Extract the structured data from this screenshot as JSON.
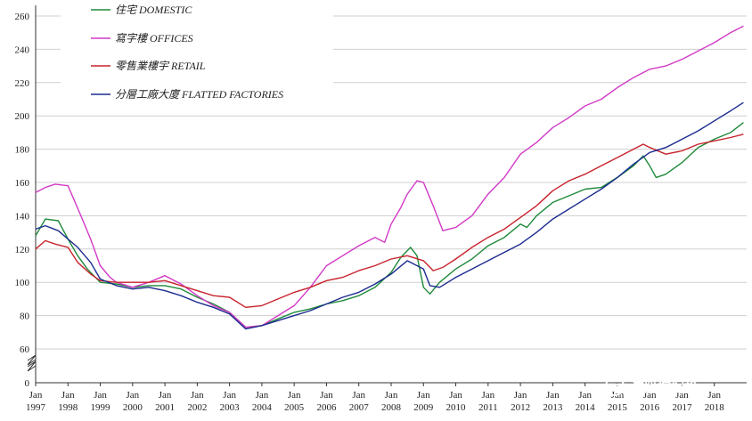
{
  "chart_data": {
    "type": "line",
    "title": "",
    "xlabel": "",
    "ylabel": "",
    "ylim": [
      60,
      260
    ],
    "y_axis_origin_label": "0",
    "y_axis_break": true,
    "yticks": [
      "60",
      "80",
      "100",
      "120",
      "140",
      "160",
      "180",
      "200",
      "220",
      "240",
      "260"
    ],
    "xlim": [
      "1997-01",
      "2018-12"
    ],
    "x_ticks": [
      {
        "top": "Jan",
        "bottom": "1997",
        "year": 1997
      },
      {
        "top": "Jan",
        "bottom": "1998",
        "year": 1998
      },
      {
        "top": "Jan",
        "bottom": "1999",
        "year": 1999
      },
      {
        "top": "Jan",
        "bottom": "2000",
        "year": 2000
      },
      {
        "top": "Jan",
        "bottom": "2001",
        "year": 2001
      },
      {
        "top": "Jan",
        "bottom": "2002",
        "year": 2002
      },
      {
        "top": "Jan",
        "bottom": "2003",
        "year": 2003
      },
      {
        "top": "Jan",
        "bottom": "2004",
        "year": 2004
      },
      {
        "top": "Jan",
        "bottom": "2005",
        "year": 2005
      },
      {
        "top": "Jan",
        "bottom": "2006",
        "year": 2006
      },
      {
        "top": "Jan",
        "bottom": "2007",
        "year": 2007
      },
      {
        "top": "Jan",
        "bottom": "2008",
        "year": 2008
      },
      {
        "top": "Jan",
        "bottom": "2009",
        "year": 2009
      },
      {
        "top": "Jan",
        "bottom": "2010",
        "year": 2010
      },
      {
        "top": "Jan",
        "bottom": "2011",
        "year": 2011
      },
      {
        "top": "Jan",
        "bottom": "2012",
        "year": 2012
      },
      {
        "top": "Jan",
        "bottom": "2013",
        "year": 2013
      },
      {
        "top": "Jan",
        "bottom": "2014",
        "year": 2014
      },
      {
        "top": "Jan",
        "bottom": "2015",
        "year": 2015
      },
      {
        "top": "Jan",
        "bottom": "2016",
        "year": 2016
      },
      {
        "top": "Jan",
        "bottom": "2017",
        "year": 2017
      },
      {
        "top": "Jan",
        "bottom": "2018",
        "year": 2018
      }
    ],
    "grid": true,
    "legend_position": "top-left",
    "series": [
      {
        "name": "住宅  DOMESTIC",
        "color": "#1e8a3a",
        "points": [
          [
            1997.0,
            128
          ],
          [
            1997.3,
            138
          ],
          [
            1997.7,
            137
          ],
          [
            1998.0,
            126
          ],
          [
            1998.3,
            116
          ],
          [
            1998.6,
            108
          ],
          [
            1999.0,
            100
          ],
          [
            1999.5,
            99
          ],
          [
            2000.0,
            97
          ],
          [
            2000.5,
            98
          ],
          [
            2001.0,
            98
          ],
          [
            2001.5,
            96
          ],
          [
            2002.0,
            91
          ],
          [
            2002.5,
            87
          ],
          [
            2003.0,
            82
          ],
          [
            2003.5,
            73
          ],
          [
            2004.0,
            74
          ],
          [
            2004.5,
            78
          ],
          [
            2005.0,
            82
          ],
          [
            2005.5,
            84
          ],
          [
            2006.0,
            87
          ],
          [
            2006.5,
            89
          ],
          [
            2007.0,
            92
          ],
          [
            2007.5,
            97
          ],
          [
            2008.0,
            106
          ],
          [
            2008.3,
            115
          ],
          [
            2008.6,
            121
          ],
          [
            2008.8,
            116
          ],
          [
            2009.0,
            97
          ],
          [
            2009.2,
            93
          ],
          [
            2009.5,
            100
          ],
          [
            2010.0,
            108
          ],
          [
            2010.5,
            114
          ],
          [
            2011.0,
            122
          ],
          [
            2011.5,
            127
          ],
          [
            2012.0,
            135
          ],
          [
            2012.2,
            133
          ],
          [
            2012.5,
            140
          ],
          [
            2013.0,
            148
          ],
          [
            2013.5,
            152
          ],
          [
            2014.0,
            156
          ],
          [
            2014.5,
            157
          ],
          [
            2015.0,
            163
          ],
          [
            2015.5,
            170
          ],
          [
            2015.8,
            176
          ],
          [
            2016.0,
            170
          ],
          [
            2016.2,
            163
          ],
          [
            2016.5,
            165
          ],
          [
            2017.0,
            172
          ],
          [
            2017.5,
            181
          ],
          [
            2018.0,
            186
          ],
          [
            2018.5,
            190
          ],
          [
            2018.9,
            196
          ]
        ]
      },
      {
        "name": "寫字樓   OFFICES",
        "color": "#d23ac6",
        "points": [
          [
            1997.0,
            154
          ],
          [
            1997.3,
            157
          ],
          [
            1997.6,
            159
          ],
          [
            1998.0,
            158
          ],
          [
            1998.4,
            140
          ],
          [
            1998.7,
            126
          ],
          [
            1999.0,
            110
          ],
          [
            1999.3,
            103
          ],
          [
            1999.5,
            100
          ],
          [
            2000.0,
            97
          ],
          [
            2000.5,
            100
          ],
          [
            2001.0,
            104
          ],
          [
            2001.5,
            99
          ],
          [
            2002.0,
            92
          ],
          [
            2002.5,
            86
          ],
          [
            2003.0,
            82
          ],
          [
            2003.5,
            73
          ],
          [
            2004.0,
            74
          ],
          [
            2004.5,
            80
          ],
          [
            2005.0,
            86
          ],
          [
            2005.5,
            97
          ],
          [
            2006.0,
            110
          ],
          [
            2006.5,
            116
          ],
          [
            2007.0,
            122
          ],
          [
            2007.5,
            127
          ],
          [
            2007.8,
            124
          ],
          [
            2008.0,
            135
          ],
          [
            2008.3,
            145
          ],
          [
            2008.5,
            153
          ],
          [
            2008.8,
            161
          ],
          [
            2009.0,
            160
          ],
          [
            2009.3,
            146
          ],
          [
            2009.6,
            131
          ],
          [
            2010.0,
            133
          ],
          [
            2010.5,
            140
          ],
          [
            2011.0,
            153
          ],
          [
            2011.5,
            163
          ],
          [
            2012.0,
            177
          ],
          [
            2012.5,
            184
          ],
          [
            2013.0,
            193
          ],
          [
            2013.5,
            199
          ],
          [
            2014.0,
            206
          ],
          [
            2014.5,
            210
          ],
          [
            2015.0,
            217
          ],
          [
            2015.5,
            223
          ],
          [
            2016.0,
            228
          ],
          [
            2016.5,
            230
          ],
          [
            2017.0,
            234
          ],
          [
            2017.5,
            239
          ],
          [
            2018.0,
            244
          ],
          [
            2018.5,
            250
          ],
          [
            2018.9,
            254
          ]
        ]
      },
      {
        "name": "零售業樓宇  RETAIL",
        "color": "#c8232c",
        "points": [
          [
            1997.0,
            120
          ],
          [
            1997.3,
            125
          ],
          [
            1997.6,
            123
          ],
          [
            1998.0,
            121
          ],
          [
            1998.3,
            112
          ],
          [
            1998.7,
            105
          ],
          [
            1999.0,
            101
          ],
          [
            1999.5,
            100
          ],
          [
            2000.0,
            100
          ],
          [
            2000.5,
            100
          ],
          [
            2001.0,
            101
          ],
          [
            2001.5,
            98
          ],
          [
            2002.0,
            95
          ],
          [
            2002.5,
            92
          ],
          [
            2003.0,
            91
          ],
          [
            2003.5,
            85
          ],
          [
            2004.0,
            86
          ],
          [
            2004.5,
            90
          ],
          [
            2005.0,
            94
          ],
          [
            2005.5,
            97
          ],
          [
            2006.0,
            101
          ],
          [
            2006.5,
            103
          ],
          [
            2007.0,
            107
          ],
          [
            2007.5,
            110
          ],
          [
            2008.0,
            114
          ],
          [
            2008.5,
            116
          ],
          [
            2009.0,
            113
          ],
          [
            2009.3,
            107
          ],
          [
            2009.6,
            109
          ],
          [
            2010.0,
            114
          ],
          [
            2010.5,
            121
          ],
          [
            2011.0,
            127
          ],
          [
            2011.5,
            132
          ],
          [
            2012.0,
            139
          ],
          [
            2012.5,
            146
          ],
          [
            2013.0,
            155
          ],
          [
            2013.5,
            161
          ],
          [
            2014.0,
            165
          ],
          [
            2014.5,
            170
          ],
          [
            2015.0,
            175
          ],
          [
            2015.5,
            180
          ],
          [
            2015.8,
            183
          ],
          [
            2016.0,
            181
          ],
          [
            2016.5,
            177
          ],
          [
            2017.0,
            179
          ],
          [
            2017.5,
            183
          ],
          [
            2018.0,
            185
          ],
          [
            2018.5,
            187
          ],
          [
            2018.9,
            189
          ]
        ]
      },
      {
        "name": "分層工廠大廈  FLATTED FACTORIES",
        "color": "#1c2b8f",
        "points": [
          [
            1997.0,
            132
          ],
          [
            1997.3,
            134
          ],
          [
            1997.7,
            131
          ],
          [
            1998.0,
            126
          ],
          [
            1998.3,
            121
          ],
          [
            1998.7,
            112
          ],
          [
            1999.0,
            102
          ],
          [
            1999.5,
            98
          ],
          [
            2000.0,
            96
          ],
          [
            2000.5,
            97
          ],
          [
            2001.0,
            95
          ],
          [
            2001.5,
            92
          ],
          [
            2002.0,
            88
          ],
          [
            2002.5,
            85
          ],
          [
            2003.0,
            81
          ],
          [
            2003.5,
            72
          ],
          [
            2004.0,
            74
          ],
          [
            2004.5,
            77
          ],
          [
            2005.0,
            80
          ],
          [
            2005.5,
            83
          ],
          [
            2006.0,
            87
          ],
          [
            2006.5,
            91
          ],
          [
            2007.0,
            94
          ],
          [
            2007.5,
            99
          ],
          [
            2008.0,
            105
          ],
          [
            2008.5,
            113
          ],
          [
            2009.0,
            108
          ],
          [
            2009.2,
            98
          ],
          [
            2009.5,
            97
          ],
          [
            2010.0,
            103
          ],
          [
            2010.5,
            108
          ],
          [
            2011.0,
            113
          ],
          [
            2011.5,
            118
          ],
          [
            2012.0,
            123
          ],
          [
            2012.5,
            130
          ],
          [
            2013.0,
            138
          ],
          [
            2013.5,
            144
          ],
          [
            2014.0,
            150
          ],
          [
            2014.5,
            156
          ],
          [
            2015.0,
            163
          ],
          [
            2015.5,
            171
          ],
          [
            2016.0,
            178
          ],
          [
            2016.5,
            181
          ],
          [
            2017.0,
            186
          ],
          [
            2017.5,
            191
          ],
          [
            2018.0,
            197
          ],
          [
            2018.5,
            203
          ],
          [
            2018.9,
            208
          ]
        ]
      }
    ]
  },
  "watermark": {
    "text": "港股挖掘机"
  }
}
